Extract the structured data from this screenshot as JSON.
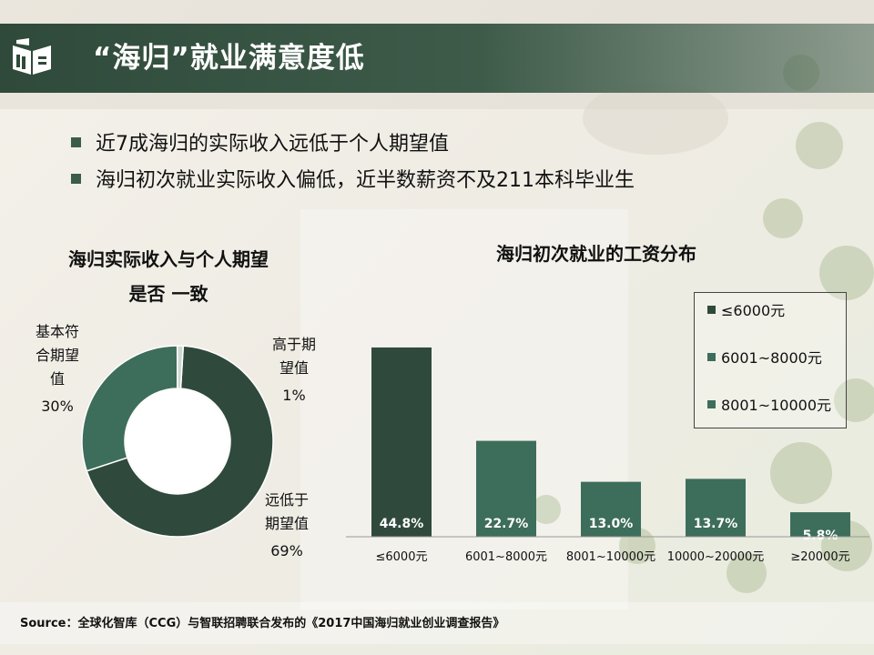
{
  "header": {
    "title": "“海归”就业满意度低",
    "logo_icon": "open-book-icon"
  },
  "bullets": [
    "近7成海归的实际收入远低于个人期望值",
    "海归初次就业实际收入偏低，近半数薪资不及211本科毕业生"
  ],
  "colors": {
    "dark_green": "#2f4a3c",
    "mid_green": "#3d6d5b",
    "light_green": "#4b7d6a",
    "pale": "#cdd8d0"
  },
  "chart_data": [
    {
      "type": "pie",
      "title_line1": "海归实际收入与个人期望",
      "title_line2": "是否 一致",
      "slices": [
        {
          "label_lines": [
            "远低于",
            "期望值"
          ],
          "value": 69,
          "value_label": "69%",
          "color": "#2f4a3c"
        },
        {
          "label_lines": [
            "基本符",
            "合期望",
            "值"
          ],
          "value": 30,
          "value_label": "30%",
          "color": "#3d6d5b"
        },
        {
          "label_lines": [
            "高于期",
            "望值"
          ],
          "value": 1,
          "value_label": "1%",
          "color": "#cdd8d0"
        }
      ]
    },
    {
      "type": "bar",
      "title": "海归初次就业的工资分布",
      "categories": [
        "≤6000元",
        "6001~8000元",
        "8001~10000元",
        "10000~20000元",
        "≥20000元"
      ],
      "values": [
        44.8,
        22.7,
        13.0,
        13.7,
        5.8
      ],
      "value_labels": [
        "44.8%",
        "22.7%",
        "13.0%",
        "13.7%",
        "5.8%"
      ],
      "bar_colors": [
        "#2f4a3c",
        "#3d6d5b",
        "#3d6d5b",
        "#3d6d5b",
        "#3d6d5b"
      ],
      "ylim": [
        0,
        50
      ],
      "legend": [
        {
          "label": "≤6000元",
          "color": "#2f4a3c"
        },
        {
          "label": "6001~8000元",
          "color": "#3d6d5b"
        },
        {
          "label": "8001~10000元",
          "color": "#3d6d5b"
        }
      ]
    }
  ],
  "source": "Source：全球化智库（CCG）与智联招聘联合发布的《2017中国海归就业创业调查报告》"
}
